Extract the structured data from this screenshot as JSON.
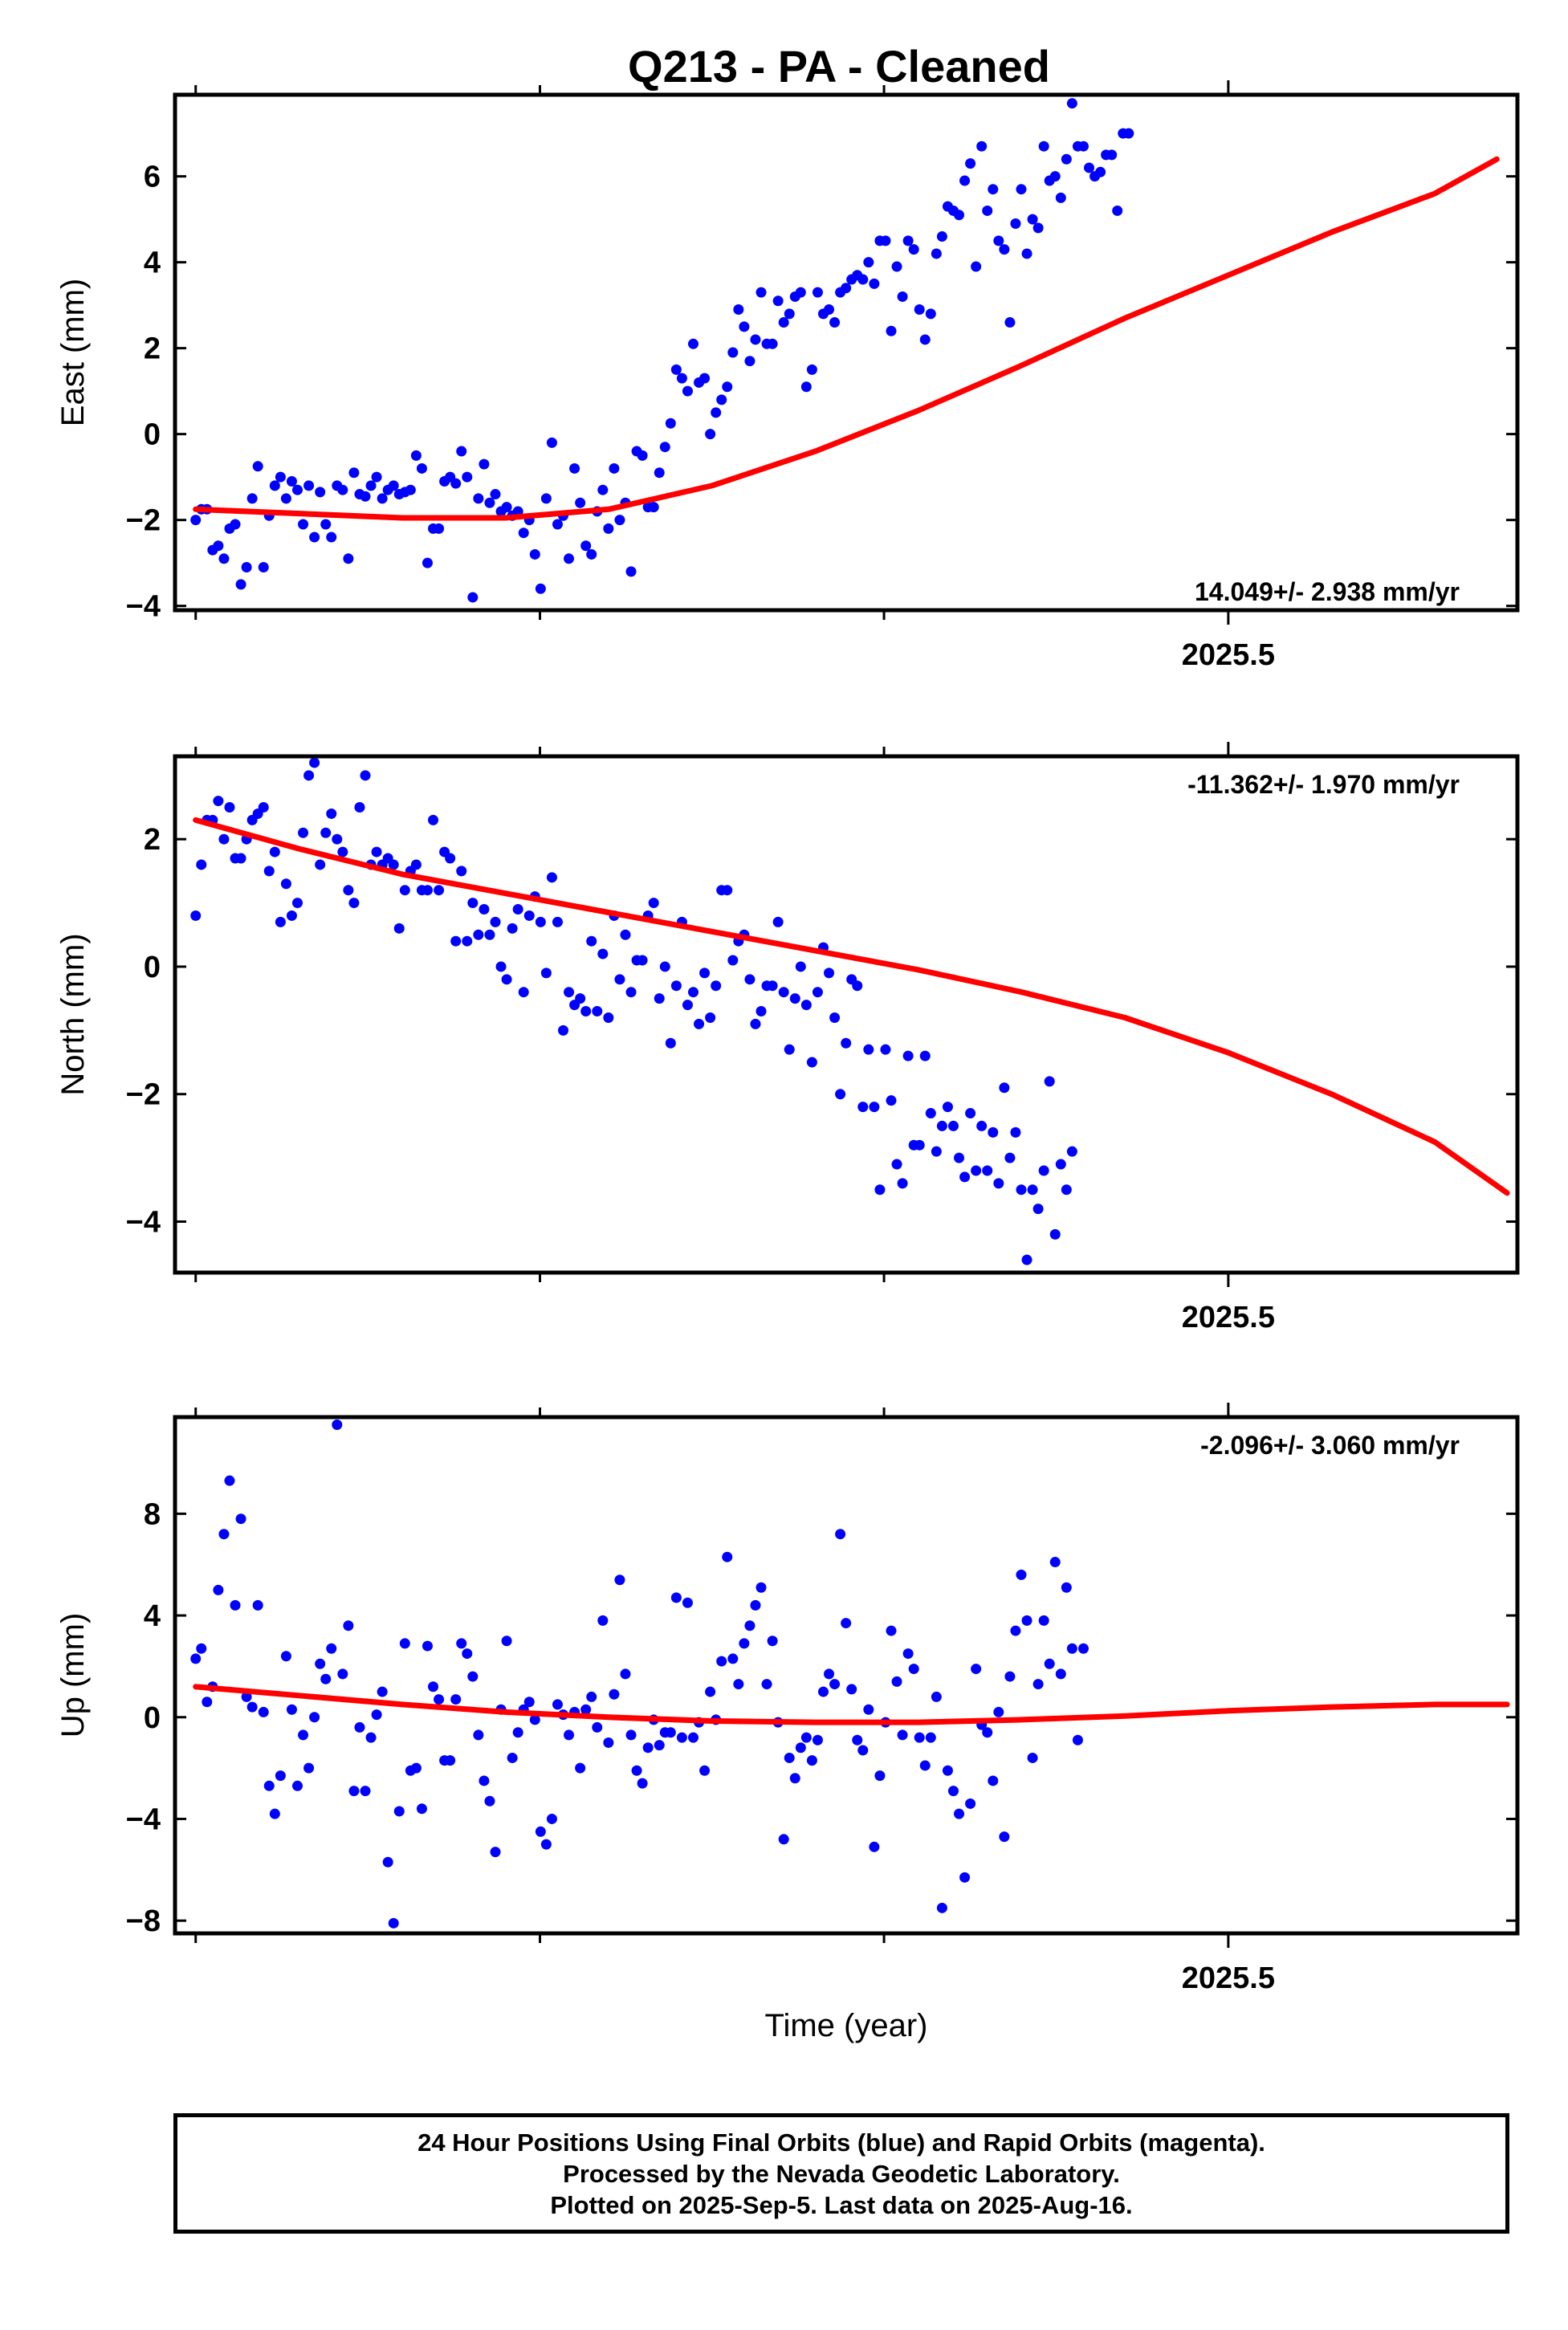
{
  "title": "Q213  - PA - Cleaned",
  "footer": {
    "line1": "24 Hour Positions Using Final Orbits (blue) and Rapid Orbits (magenta).",
    "line2": "Processed by the Nevada Geodetic Laboratory.",
    "line3": "Plotted on 2025-Sep-5. Last data on 2025-Aug-16."
  },
  "colors": {
    "points": "#0000ff",
    "fit": "#ff0000",
    "frame": "#000000"
  },
  "chart_data": [
    {
      "type": "scatter",
      "ylabel": "East (mm)",
      "xlabel": "",
      "rate_label": "14.049+/- 2.938 mm/yr",
      "rate_position": "bottom-right",
      "xlim": [
        2024.99,
        2025.64
      ],
      "ylim": [
        -4.1,
        7.9
      ],
      "yticks": [
        -4,
        -2,
        0,
        2,
        4,
        6
      ],
      "ytick_labels": [
        "−4",
        "−2",
        "0",
        "2",
        "4",
        "6"
      ],
      "xticks_minor": [
        2025.0,
        2025.1667,
        2025.3333,
        2025.6667
      ],
      "xtick_labels": [
        {
          "value": 2025.5,
          "label": "2025.5"
        }
      ],
      "grid": false,
      "series": [
        {
          "kind": "points",
          "x_start": 2025.0,
          "x_step": 0.002738,
          "values": [
            -2.0,
            -1.75,
            -1.75,
            -2.7,
            -2.6,
            -2.9,
            -2.2,
            -2.1,
            -3.5,
            -3.1,
            -1.5,
            -0.75,
            -3.1,
            -1.9,
            -1.2,
            -1.0,
            -1.5,
            -1.1,
            -1.3,
            -2.1,
            -1.2,
            -2.4,
            -1.35,
            -2.1,
            -2.4,
            -1.2,
            -1.3,
            -2.9,
            -0.9,
            -1.4,
            -1.45,
            -1.2,
            -1.0,
            -1.5,
            -1.3,
            -1.2,
            -1.4,
            -1.35,
            -1.3,
            -0.5,
            -0.8,
            -3.0,
            -2.2,
            -2.2,
            -1.1,
            -1.0,
            -1.15,
            -0.4,
            -1.0,
            -3.8,
            -1.5,
            -0.7,
            -1.6,
            -1.4,
            -1.8,
            -1.7,
            -1.9,
            -1.8,
            -2.3,
            -2.0,
            -2.8,
            -3.6,
            -1.5,
            -0.2,
            -2.1,
            -1.9,
            -2.9,
            -0.8,
            -1.6,
            -2.6,
            -2.8,
            -1.8,
            -1.3,
            -2.2,
            -0.8,
            -2.0,
            -1.6,
            -3.2,
            -0.4,
            -0.5,
            -1.7,
            -1.7,
            -0.9,
            -0.3,
            0.25,
            1.5,
            1.3,
            1.0,
            2.1,
            1.2,
            1.3,
            0.0,
            0.5,
            0.8,
            1.1,
            1.9,
            2.9,
            2.5,
            1.7,
            2.2,
            3.3,
            2.1,
            2.1,
            3.1,
            2.6,
            2.8,
            3.2,
            3.3,
            1.1,
            1.5,
            3.3,
            2.8,
            2.9,
            2.6,
            3.3,
            3.4,
            3.6,
            3.7,
            3.6,
            4.0,
            3.5,
            4.5,
            4.5,
            2.4,
            3.9,
            3.2,
            4.5,
            4.3,
            2.9,
            2.2,
            2.8,
            4.2,
            4.6,
            5.3,
            5.2,
            5.1,
            5.9,
            6.3,
            3.9,
            6.7,
            5.2,
            5.7,
            4.5,
            4.3,
            2.6,
            4.9,
            5.7,
            4.2,
            5.0,
            4.8,
            6.7,
            5.9,
            6.0,
            5.5,
            6.4,
            7.7,
            6.7,
            6.7,
            6.2,
            6.0,
            6.1,
            6.5,
            6.5,
            5.2,
            7.0,
            7.0
          ]
        },
        {
          "kind": "fit",
          "x": [
            2025.0,
            2025.05,
            2025.1,
            2025.15,
            2025.2,
            2025.25,
            2025.3,
            2025.35,
            2025.4,
            2025.45,
            2025.5,
            2025.55,
            2025.6,
            2025.63
          ],
          "values": [
            -1.75,
            -1.85,
            -1.95,
            -1.95,
            -1.75,
            -1.2,
            -0.4,
            0.55,
            1.6,
            2.7,
            3.7,
            4.7,
            5.6,
            6.4
          ]
        }
      ]
    },
    {
      "type": "scatter",
      "ylabel": "North (mm)",
      "xlabel": "",
      "rate_label": "-11.362+/- 1.970 mm/yr",
      "rate_position": "top-right",
      "xlim": [
        2024.99,
        2025.64
      ],
      "ylim": [
        -4.8,
        3.3
      ],
      "yticks": [
        -4,
        -2,
        0,
        2
      ],
      "ytick_labels": [
        "−4",
        "−2",
        "0",
        "2"
      ],
      "xticks_minor": [
        2025.0,
        2025.1667,
        2025.3333,
        2025.6667
      ],
      "xtick_labels": [
        {
          "value": 2025.5,
          "label": "2025.5"
        }
      ],
      "grid": false,
      "series": [
        {
          "kind": "points",
          "x_start": 2025.0,
          "x_step": 0.002738,
          "values": [
            0.8,
            1.6,
            2.3,
            2.3,
            2.6,
            2.0,
            2.5,
            1.7,
            1.7,
            2.0,
            2.3,
            2.4,
            2.5,
            1.5,
            1.8,
            0.7,
            1.3,
            0.8,
            1.0,
            2.1,
            3.0,
            3.2,
            1.6,
            2.1,
            2.4,
            2.0,
            1.8,
            1.2,
            1.0,
            2.5,
            3.0,
            1.6,
            1.8,
            1.6,
            1.7,
            1.6,
            0.6,
            1.2,
            1.5,
            1.6,
            1.2,
            1.2,
            2.3,
            1.2,
            1.8,
            1.7,
            0.4,
            1.5,
            0.4,
            1.0,
            0.5,
            0.9,
            0.5,
            0.7,
            0.0,
            -0.2,
            0.6,
            0.9,
            -0.4,
            0.8,
            1.1,
            0.7,
            -0.1,
            1.4,
            0.7,
            -1.0,
            -0.4,
            -0.6,
            -0.5,
            -0.7,
            0.4,
            -0.7,
            0.2,
            -0.8,
            0.8,
            -0.2,
            0.5,
            -0.4,
            0.1,
            0.1,
            0.8,
            1.0,
            -0.5,
            0.0,
            -1.2,
            -0.3,
            0.7,
            -0.6,
            -0.4,
            -0.9,
            -0.1,
            -0.8,
            -0.3,
            1.2,
            1.2,
            0.1,
            0.4,
            0.5,
            -0.2,
            -0.9,
            -0.7,
            -0.3,
            -0.3,
            0.7,
            -0.4,
            -1.3,
            -0.5,
            0.0,
            -0.6,
            -1.5,
            -0.4,
            0.3,
            -0.1,
            -0.8,
            -2.0,
            -1.2,
            -0.2,
            -0.3,
            -2.2,
            -1.3,
            -2.2,
            -3.5,
            -1.3,
            -2.1,
            -3.1,
            -3.4,
            -1.4,
            -2.8,
            -2.8,
            -1.4,
            -2.3,
            -2.9,
            -2.5,
            -2.2,
            -2.5,
            -3.0,
            -3.3,
            -2.3,
            -3.2,
            -2.5,
            -3.2,
            -2.6,
            -3.4,
            -1.9,
            -3.0,
            -2.6,
            -3.5,
            -4.6,
            -3.5,
            -3.8,
            -3.2,
            -1.8,
            -4.2,
            -3.1,
            -3.5,
            -2.9
          ]
        },
        {
          "kind": "fit",
          "x": [
            2025.0,
            2025.05,
            2025.1,
            2025.15,
            2025.2,
            2025.25,
            2025.3,
            2025.35,
            2025.4,
            2025.45,
            2025.5,
            2025.55,
            2025.6,
            2025.635
          ],
          "values": [
            2.3,
            1.85,
            1.45,
            1.15,
            0.85,
            0.55,
            0.25,
            -0.05,
            -0.4,
            -0.8,
            -1.35,
            -2.0,
            -2.75,
            -3.55
          ]
        }
      ]
    },
    {
      "type": "scatter",
      "ylabel": "Up (mm)",
      "xlabel": "Time (year)",
      "rate_label": "-2.096+/- 3.060 mm/yr",
      "rate_position": "top-right",
      "xlim": [
        2024.99,
        2025.64
      ],
      "ylim": [
        -8.5,
        11.8
      ],
      "yticks": [
        -8,
        -4,
        0,
        4,
        8
      ],
      "ytick_labels": [
        "−8",
        "−4",
        "0",
        "4",
        "8"
      ],
      "xticks_minor": [
        2025.0,
        2025.1667,
        2025.3333,
        2025.6667
      ],
      "xtick_labels": [
        {
          "value": 2025.5,
          "label": "2025.5"
        }
      ],
      "grid": false,
      "series": [
        {
          "kind": "points",
          "x_start": 2025.0,
          "x_step": 0.002738,
          "values": [
            2.3,
            2.7,
            0.6,
            1.2,
            5.0,
            7.2,
            9.3,
            4.4,
            7.8,
            0.8,
            0.4,
            4.4,
            0.2,
            -2.7,
            -3.8,
            -2.3,
            2.4,
            0.3,
            -2.7,
            -0.7,
            -2.0,
            0.0,
            2.1,
            1.5,
            2.7,
            11.5,
            1.7,
            3.6,
            -2.9,
            -0.4,
            -2.9,
            -0.8,
            0.1,
            1.0,
            -5.7,
            -8.1,
            -3.7,
            2.9,
            -2.1,
            -2.0,
            -3.6,
            2.8,
            1.2,
            0.7,
            -1.7,
            -1.7,
            0.7,
            2.9,
            2.5,
            1.6,
            -0.7,
            -2.5,
            -3.3,
            -5.3,
            0.3,
            3.0,
            -1.6,
            -0.6,
            0.3,
            0.6,
            -0.1,
            -4.5,
            -5.0,
            -4.0,
            0.5,
            0.1,
            -0.7,
            0.2,
            -2.0,
            0.3,
            0.8,
            -0.4,
            3.8,
            -1.0,
            0.9,
            5.4,
            1.7,
            -0.7,
            -2.1,
            -2.6,
            -1.2,
            -0.1,
            -1.1,
            -0.6,
            -0.6,
            4.7,
            -0.8,
            4.5,
            -0.8,
            -0.2,
            -2.1,
            1.0,
            -0.1,
            2.2,
            6.3,
            2.3,
            1.3,
            2.9,
            3.6,
            4.4,
            5.1,
            1.3,
            3.0,
            -0.2,
            -4.8,
            -1.6,
            -2.4,
            -1.2,
            -0.8,
            -1.7,
            -0.9,
            1.0,
            1.7,
            1.3,
            7.2,
            3.7,
            1.1,
            -0.9,
            -1.3,
            0.3,
            -5.1,
            -2.3,
            -0.2,
            3.4,
            1.4,
            -0.7,
            2.5,
            1.9,
            -0.8,
            -1.9,
            -0.8,
            0.8,
            -7.5,
            -2.1,
            -2.9,
            -3.8,
            -6.3,
            -3.4,
            1.9,
            -0.3,
            -0.6,
            -2.5,
            0.2,
            -4.7,
            1.6,
            3.4,
            5.6,
            3.8,
            -1.6,
            1.3,
            3.8,
            2.1,
            6.1,
            1.7,
            5.1,
            2.7,
            -0.9,
            2.7
          ]
        },
        {
          "kind": "fit",
          "x": [
            2025.0,
            2025.05,
            2025.1,
            2025.15,
            2025.2,
            2025.25,
            2025.3,
            2025.35,
            2025.4,
            2025.45,
            2025.5,
            2025.55,
            2025.6,
            2025.635
          ],
          "values": [
            1.2,
            0.85,
            0.5,
            0.2,
            0.0,
            -0.15,
            -0.2,
            -0.2,
            -0.1,
            0.05,
            0.25,
            0.4,
            0.5,
            0.5
          ]
        }
      ]
    }
  ]
}
